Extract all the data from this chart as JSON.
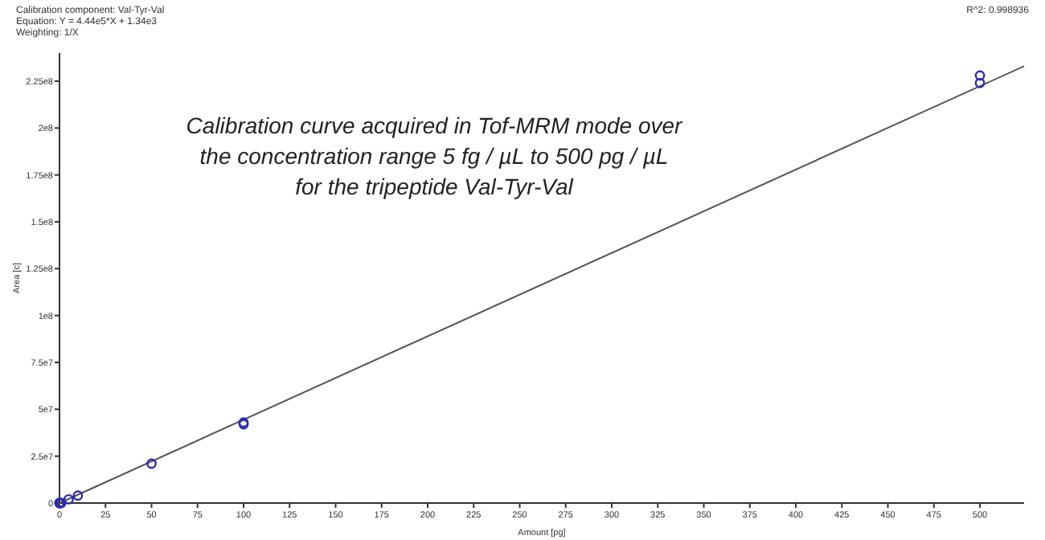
{
  "chart_data": {
    "type": "scatter",
    "xlabel": "Amount [pg]",
    "ylabel": "Area [c]",
    "annotations": [
      "Calibration component: Val-Tyr-Val",
      "Equation: Y = 4.44e5*X + 1.34e3",
      "Weighting: 1/X",
      "R^2: 0.998936",
      "Calibration curve acquired in Tof-MRM mode over the concentration range 5 fg / µL to 500 pg / µL for the tripeptide Val-Tyr-Val"
    ],
    "xlim": [
      0,
      524
    ],
    "ylim": [
      0,
      240000000
    ],
    "xticks": [
      0,
      25,
      50,
      75,
      100,
      125,
      150,
      175,
      200,
      225,
      250,
      275,
      300,
      325,
      350,
      375,
      400,
      425,
      450,
      475,
      500
    ],
    "yticks": [
      0,
      {
        "value": 25000000,
        "label": "2.5e7"
      },
      {
        "value": 50000000,
        "label": "5e7"
      },
      {
        "value": 75000000,
        "label": "7.5e7"
      },
      {
        "value": 100000000,
        "label": "1e8"
      },
      {
        "value": 125000000,
        "label": "1.25e8"
      },
      {
        "value": 150000000,
        "label": "1.5e8"
      },
      {
        "value": 175000000,
        "label": "1.75e8"
      },
      {
        "value": 200000000,
        "label": "2e8"
      },
      {
        "value": 225000000,
        "label": "2.25e8"
      }
    ],
    "grid": false,
    "marker": "circle",
    "series": [
      {
        "type": "line",
        "color": "#555555",
        "marker": "none",
        "x": [
          0,
          524
        ],
        "values": [
          0,
          233000000
        ]
      },
      {
        "type": "scatter",
        "color": "#2b2bb0",
        "x": [
          0.005,
          0.01,
          0.05,
          0.1,
          0.5,
          1,
          5,
          10,
          50,
          100,
          100,
          500,
          500
        ],
        "values": [
          0,
          0,
          0,
          0,
          0,
          0,
          2000000,
          4000000,
          21000000,
          42000000,
          43000000,
          224000000,
          228000000
        ]
      }
    ]
  }
}
